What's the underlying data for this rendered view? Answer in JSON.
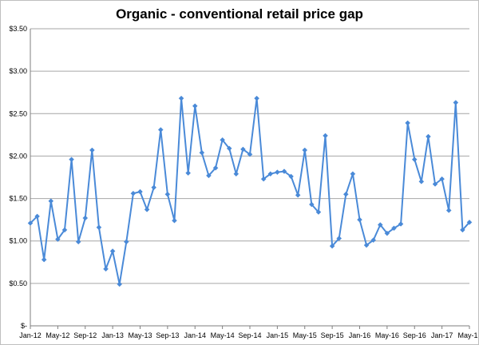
{
  "chart_data": {
    "type": "line",
    "title": "Organic - conventional  retail price gap",
    "xlabel": "",
    "ylabel": "",
    "ylim": [
      0,
      3.5
    ],
    "y_ticks": [
      0,
      0.5,
      1.0,
      1.5,
      2.0,
      2.5,
      3.0,
      3.5
    ],
    "y_tick_labels": [
      "$-",
      "$0.50",
      "$1.00",
      "$1.50",
      "$2.00",
      "$2.50",
      "$3.00",
      "$3.50"
    ],
    "x_tick_labels": [
      "Jan-12",
      "May-12",
      "Sep-12",
      "Jan-13",
      "May-13",
      "Sep-13",
      "Jan-14",
      "May-14",
      "Sep-14",
      "Jan-15",
      "May-15",
      "Sep-15",
      "Jan-16",
      "May-16",
      "Sep-16",
      "Jan-17",
      "May-1"
    ],
    "x_range_months": [
      0,
      64
    ],
    "grid": "horizontal",
    "legend": "none",
    "color": "#4a8ad8",
    "series": [
      {
        "x": [
          0,
          1,
          2,
          3,
          4,
          5,
          6,
          7,
          8,
          9,
          10,
          11,
          12,
          13,
          14,
          15,
          16,
          17,
          18,
          19,
          20,
          21,
          22,
          23,
          24,
          25,
          26,
          27,
          28,
          29,
          30,
          31,
          32,
          33,
          34,
          35,
          36,
          37,
          38,
          39,
          40,
          41,
          42,
          43,
          44,
          45,
          46,
          47,
          48,
          49,
          50,
          51,
          52,
          53,
          54,
          55,
          56,
          57,
          58,
          59,
          60,
          61,
          62,
          63,
          64
        ],
        "values": [
          1.21,
          1.29,
          0.78,
          1.47,
          1.02,
          1.13,
          1.96,
          0.99,
          1.27,
          2.07,
          1.16,
          0.67,
          0.88,
          0.49,
          0.99,
          1.56,
          1.58,
          1.37,
          1.63,
          2.31,
          1.55,
          1.24,
          2.68,
          1.8,
          2.59,
          2.04,
          1.77,
          1.86,
          2.19,
          2.09,
          1.79,
          2.08,
          2.02,
          2.68,
          1.73,
          1.79,
          1.81,
          1.82,
          1.76,
          1.54,
          2.07,
          1.43,
          1.34,
          2.24,
          0.94,
          1.03,
          1.55,
          1.79,
          1.25,
          0.95,
          1.01,
          1.19,
          1.09,
          1.15,
          1.2,
          2.39,
          1.96,
          1.7,
          2.23,
          1.67,
          1.73,
          1.36,
          2.63,
          1.13,
          1.22
        ]
      }
    ]
  }
}
